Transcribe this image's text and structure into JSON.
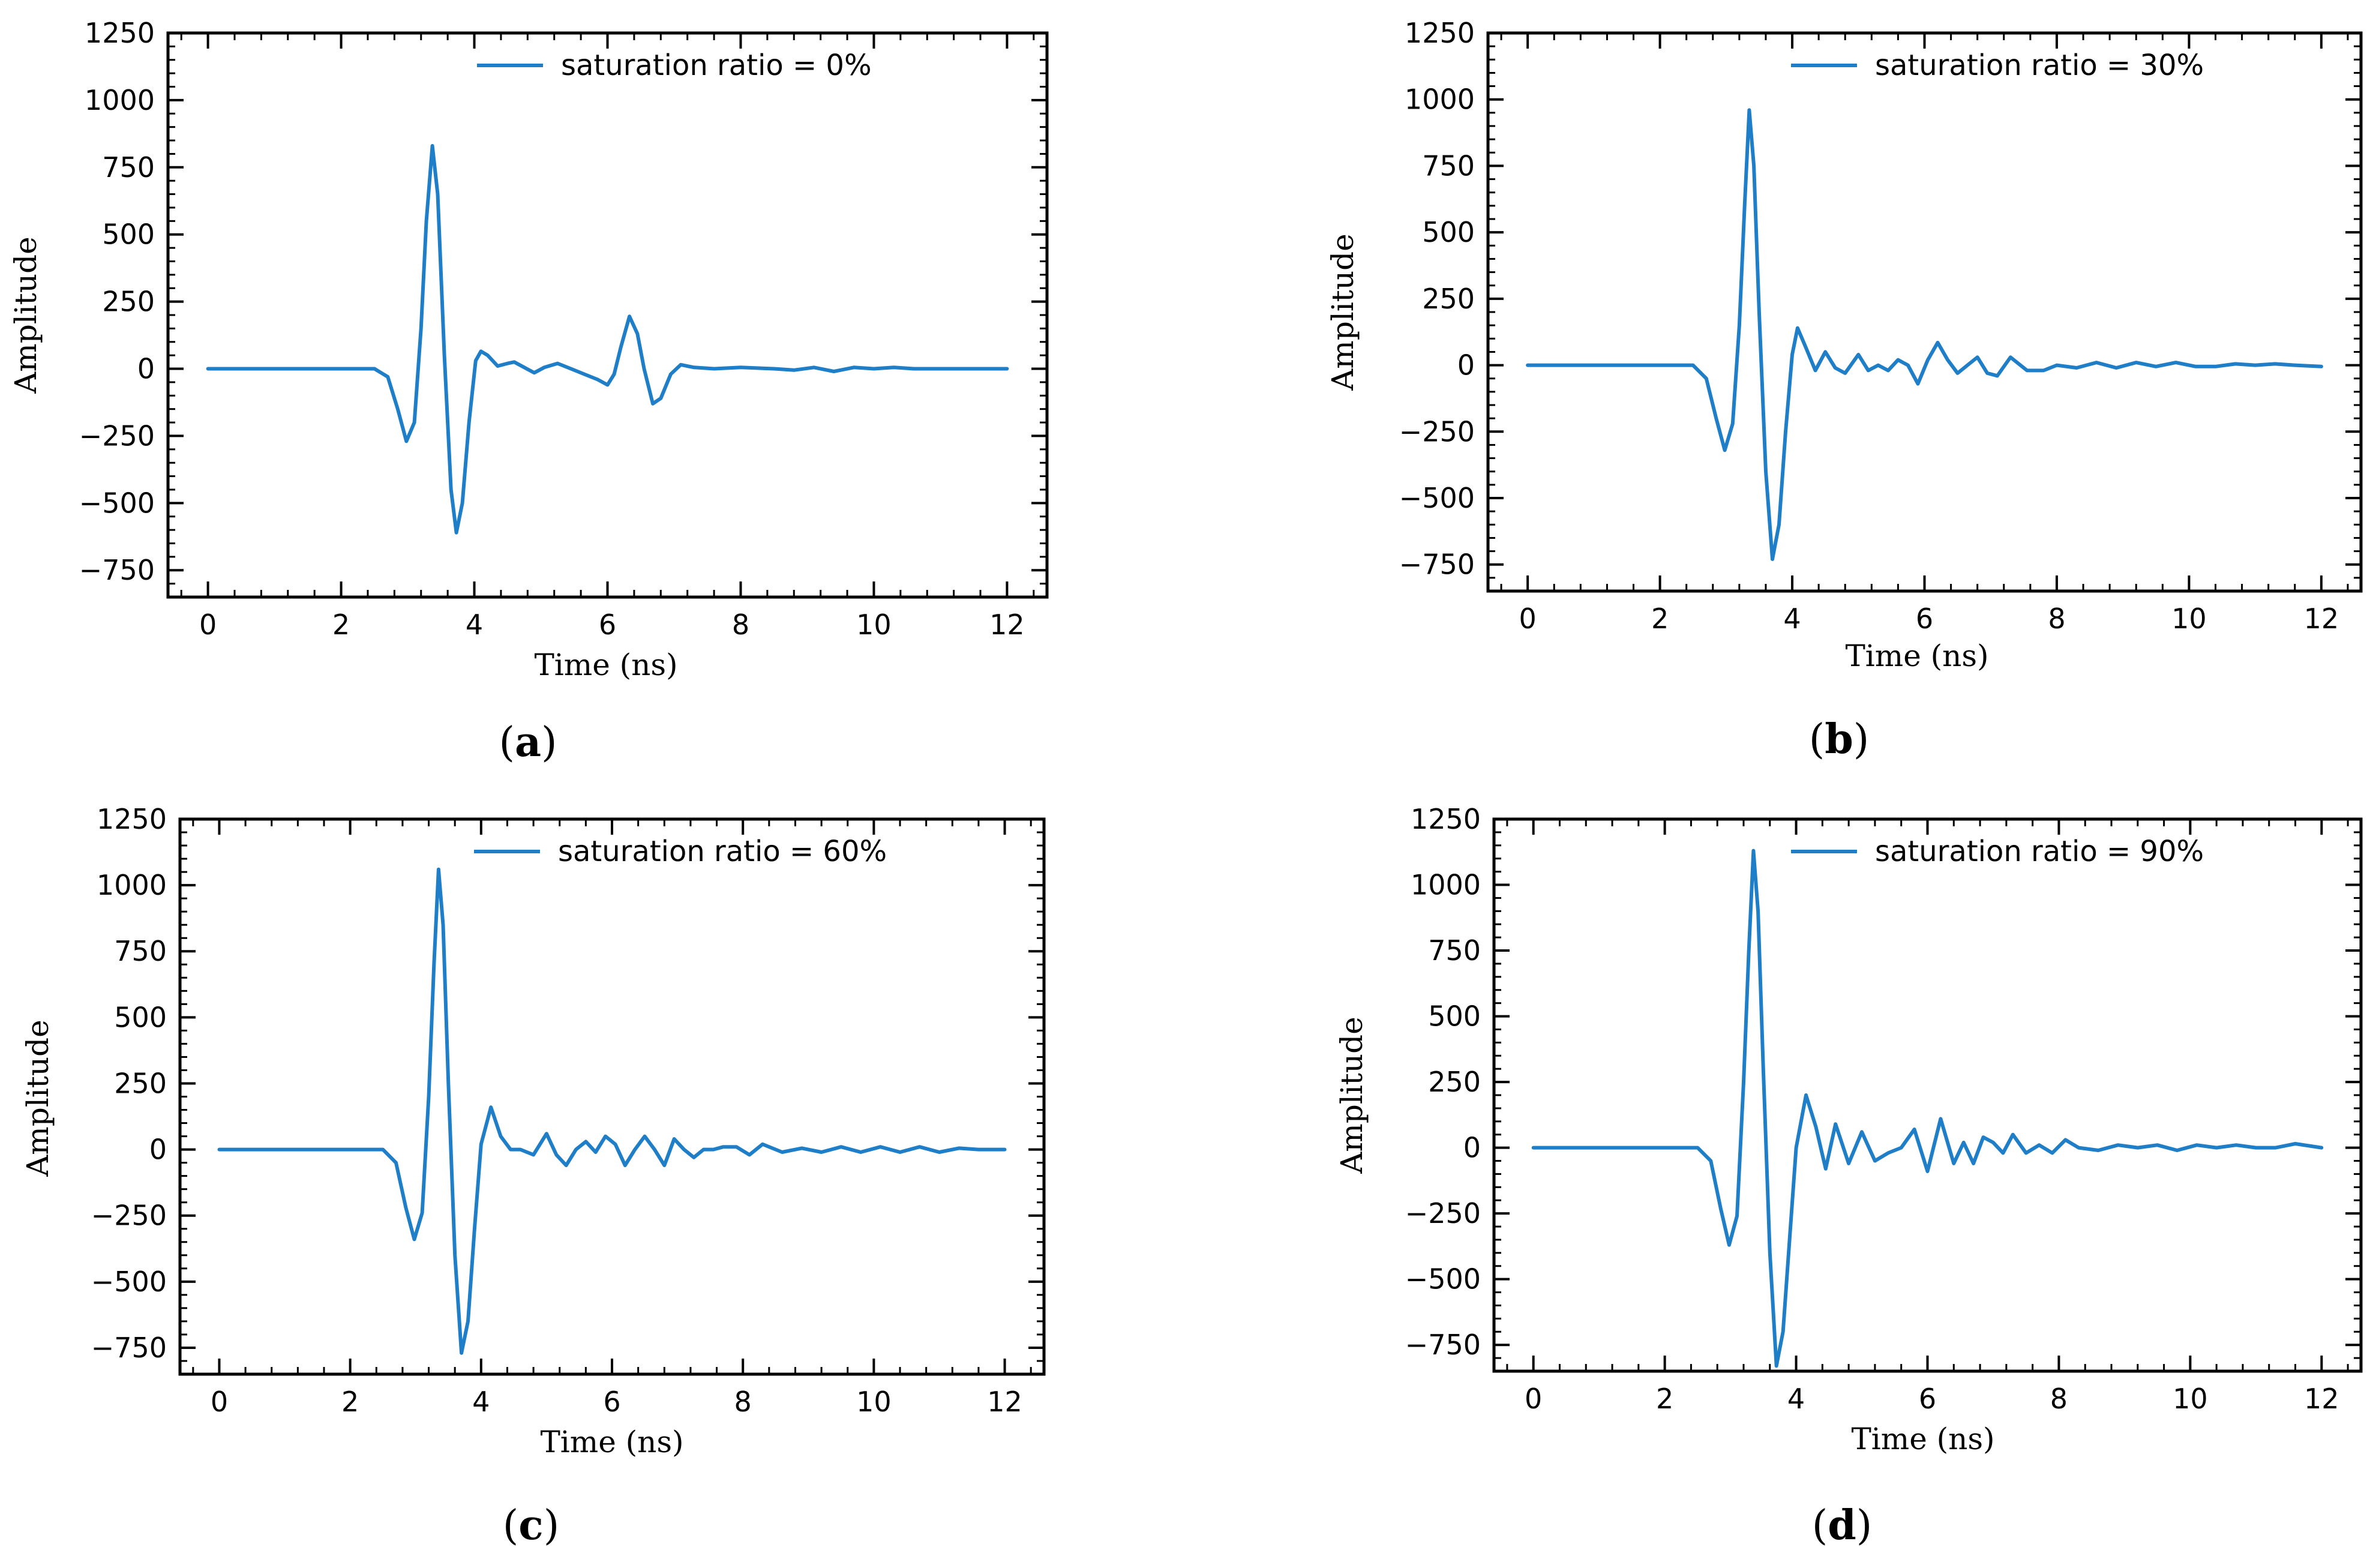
{
  "figure": {
    "line_color": "#1f7ec8"
  },
  "chart_data": [
    {
      "type": "line",
      "panel": "(a)",
      "caption_open": "(",
      "caption_letter": "a",
      "caption_close": ")",
      "xlabel": "Time (ns)",
      "ylabel": "Amplitude",
      "xlim": [
        -0.6,
        12.6
      ],
      "ylim": [
        -850,
        1250
      ],
      "xticks": [
        0,
        2,
        4,
        6,
        8,
        10,
        12
      ],
      "xtick_labels": [
        "0",
        "2",
        "4",
        "6",
        "8",
        "10",
        "12"
      ],
      "yticks": [
        -750,
        -500,
        -250,
        0,
        250,
        500,
        750,
        1000,
        1250
      ],
      "ytick_labels": [
        "−750",
        "−500",
        "−250",
        "0",
        "250",
        "500",
        "750",
        "1000",
        "1250"
      ],
      "grid": false,
      "legend_position": "top-right",
      "series": [
        {
          "name": "saturation ratio = 0%",
          "x": [
            0,
            1,
            2,
            2.5,
            2.7,
            2.85,
            2.98,
            3.1,
            3.2,
            3.28,
            3.37,
            3.45,
            3.55,
            3.65,
            3.73,
            3.82,
            3.92,
            4.02,
            4.1,
            4.2,
            4.35,
            4.5,
            4.6,
            4.75,
            4.9,
            5.05,
            5.25,
            5.45,
            5.65,
            5.85,
            6.0,
            6.1,
            6.2,
            6.33,
            6.45,
            6.55,
            6.68,
            6.8,
            6.95,
            7.1,
            7.3,
            7.6,
            8,
            8.5,
            8.8,
            9.1,
            9.4,
            9.7,
            10,
            10.3,
            10.6,
            11,
            11.5,
            12
          ],
          "y": [
            0,
            0,
            0,
            0,
            -30,
            -150,
            -270,
            -200,
            150,
            550,
            830,
            650,
            50,
            -450,
            -610,
            -500,
            -200,
            30,
            65,
            50,
            10,
            20,
            25,
            5,
            -15,
            5,
            20,
            0,
            -20,
            -40,
            -60,
            -20,
            80,
            195,
            130,
            0,
            -130,
            -110,
            -20,
            15,
            5,
            0,
            5,
            0,
            -5,
            5,
            -10,
            5,
            0,
            5,
            0,
            0,
            0,
            0
          ]
        }
      ]
    },
    {
      "type": "line",
      "panel": "(b)",
      "caption_open": "(",
      "caption_letter": "b",
      "caption_close": ")",
      "xlabel": "Time (ns)",
      "ylabel": "Amplitude",
      "xlim": [
        -0.6,
        12.6
      ],
      "ylim": [
        -850,
        1250
      ],
      "xticks": [
        0,
        2,
        4,
        6,
        8,
        10,
        12
      ],
      "xtick_labels": [
        "0",
        "2",
        "4",
        "6",
        "8",
        "10",
        "12"
      ],
      "yticks": [
        -750,
        -500,
        -250,
        0,
        250,
        500,
        750,
        1000,
        1250
      ],
      "ytick_labels": [
        "−750",
        "−500",
        "−250",
        "0",
        "250",
        "500",
        "750",
        "1000",
        "1250"
      ],
      "grid": false,
      "legend_position": "top-right",
      "series": [
        {
          "name": "saturation ratio = 30%",
          "x": [
            0,
            1,
            2,
            2.5,
            2.7,
            2.85,
            2.98,
            3.1,
            3.2,
            3.28,
            3.35,
            3.42,
            3.5,
            3.6,
            3.7,
            3.8,
            3.9,
            4.0,
            4.08,
            4.2,
            4.35,
            4.5,
            4.65,
            4.8,
            5.0,
            5.15,
            5.3,
            5.45,
            5.6,
            5.75,
            5.9,
            6.05,
            6.2,
            6.35,
            6.5,
            6.65,
            6.8,
            6.95,
            7.1,
            7.3,
            7.55,
            7.8,
            8.0,
            8.3,
            8.6,
            8.9,
            9.2,
            9.5,
            9.8,
            10.1,
            10.4,
            10.7,
            11.0,
            11.3,
            11.6,
            12
          ],
          "y": [
            0,
            0,
            0,
            0,
            -50,
            -200,
            -320,
            -220,
            150,
            600,
            960,
            750,
            200,
            -400,
            -730,
            -600,
            -250,
            40,
            140,
            70,
            -20,
            50,
            -10,
            -30,
            40,
            -20,
            0,
            -20,
            20,
            0,
            -70,
            20,
            85,
            20,
            -30,
            0,
            30,
            -30,
            -40,
            30,
            -20,
            -20,
            0,
            -10,
            10,
            -10,
            10,
            -5,
            10,
            -5,
            -5,
            5,
            0,
            5,
            0,
            -5
          ]
        }
      ]
    },
    {
      "type": "line",
      "panel": "(c)",
      "caption_open": "(",
      "caption_letter": "c",
      "caption_close": ")",
      "xlabel": "Time (ns)",
      "ylabel": "Amplitude",
      "xlim": [
        -0.6,
        12.6
      ],
      "ylim": [
        -850,
        1250
      ],
      "xticks": [
        0,
        2,
        4,
        6,
        8,
        10,
        12
      ],
      "xtick_labels": [
        "0",
        "2",
        "4",
        "6",
        "8",
        "10",
        "12"
      ],
      "yticks": [
        -750,
        -500,
        -250,
        0,
        250,
        500,
        750,
        1000,
        1250
      ],
      "ytick_labels": [
        "−750",
        "−500",
        "−250",
        "0",
        "250",
        "500",
        "750",
        "1000",
        "1250"
      ],
      "grid": false,
      "legend_position": "top-right",
      "series": [
        {
          "name": "saturation ratio = 60%",
          "x": [
            0,
            1,
            2,
            2.5,
            2.7,
            2.85,
            2.98,
            3.1,
            3.2,
            3.28,
            3.35,
            3.42,
            3.5,
            3.6,
            3.7,
            3.8,
            3.9,
            4.0,
            4.15,
            4.3,
            4.45,
            4.6,
            4.8,
            5.0,
            5.15,
            5.3,
            5.45,
            5.6,
            5.75,
            5.9,
            6.05,
            6.2,
            6.35,
            6.5,
            6.65,
            6.8,
            6.95,
            7.1,
            7.25,
            7.4,
            7.55,
            7.7,
            7.9,
            8.1,
            8.3,
            8.6,
            8.9,
            9.2,
            9.5,
            9.8,
            10.1,
            10.4,
            10.7,
            11.0,
            11.3,
            11.6,
            12
          ],
          "y": [
            0,
            0,
            0,
            0,
            -50,
            -220,
            -340,
            -240,
            200,
            700,
            1060,
            850,
            250,
            -400,
            -770,
            -650,
            -300,
            20,
            160,
            50,
            0,
            0,
            -20,
            60,
            -20,
            -60,
            0,
            30,
            -10,
            50,
            20,
            -60,
            0,
            50,
            0,
            -60,
            40,
            0,
            -30,
            0,
            0,
            10,
            10,
            -20,
            20,
            -10,
            5,
            -10,
            10,
            -10,
            10,
            -10,
            10,
            -10,
            5,
            0,
            0
          ]
        }
      ]
    },
    {
      "type": "line",
      "panel": "(d)",
      "caption_open": "(",
      "caption_letter": "d",
      "caption_close": ")",
      "xlabel": "Time (ns)",
      "ylabel": "Amplitude",
      "xlim": [
        -0.6,
        12.6
      ],
      "ylim": [
        -850,
        1250
      ],
      "xticks": [
        0,
        2,
        4,
        6,
        8,
        10,
        12
      ],
      "xtick_labels": [
        "0",
        "2",
        "4",
        "6",
        "8",
        "10",
        "12"
      ],
      "yticks": [
        -750,
        -500,
        -250,
        0,
        250,
        500,
        750,
        1000,
        1250
      ],
      "ytick_labels": [
        "−750",
        "−500",
        "−250",
        "0",
        "250",
        "500",
        "750",
        "1000",
        "1250"
      ],
      "grid": false,
      "legend_position": "top-right",
      "series": [
        {
          "name": "saturation ratio = 90%",
          "x": [
            0,
            1,
            2,
            2.5,
            2.7,
            2.85,
            2.98,
            3.1,
            3.2,
            3.28,
            3.35,
            3.42,
            3.5,
            3.6,
            3.7,
            3.8,
            3.9,
            4.0,
            4.15,
            4.3,
            4.45,
            4.6,
            4.8,
            5.0,
            5.2,
            5.4,
            5.6,
            5.8,
            6.0,
            6.2,
            6.4,
            6.55,
            6.7,
            6.85,
            7.0,
            7.15,
            7.3,
            7.5,
            7.7,
            7.9,
            8.1,
            8.3,
            8.6,
            8.9,
            9.2,
            9.5,
            9.8,
            10.1,
            10.4,
            10.7,
            11.0,
            11.3,
            11.6,
            12
          ],
          "y": [
            0,
            0,
            0,
            0,
            -50,
            -230,
            -370,
            -260,
            250,
            750,
            1130,
            900,
            300,
            -400,
            -830,
            -700,
            -350,
            0,
            200,
            80,
            -80,
            90,
            -60,
            60,
            -50,
            -20,
            0,
            70,
            -90,
            110,
            -60,
            20,
            -60,
            40,
            20,
            -20,
            50,
            -20,
            10,
            -20,
            30,
            0,
            -10,
            10,
            0,
            10,
            -10,
            10,
            0,
            10,
            0,
            0,
            15,
            0
          ]
        }
      ]
    }
  ]
}
